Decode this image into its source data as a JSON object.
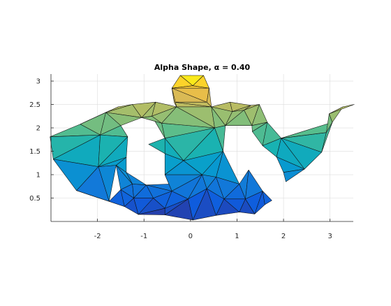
{
  "chart_data": {
    "type": "surface-3d",
    "title": "Alpha Shape, α = 0.40",
    "xlabel": "",
    "ylabel": "",
    "xlim": [
      -3.0,
      3.5
    ],
    "ylim": [
      0.0,
      3.15
    ],
    "x_ticks": [
      -2,
      -1,
      0,
      1,
      2,
      3
    ],
    "x_tick_labels": [
      "-2",
      "-1",
      "0",
      "1",
      "2",
      "3"
    ],
    "y_ticks": [
      0.5,
      1,
      1.5,
      2,
      2.5,
      3
    ],
    "y_tick_labels": [
      "0.5",
      "1",
      "1.5",
      "2",
      "2.5",
      "3"
    ],
    "grid": true,
    "colormap": "parula",
    "color_by": "height",
    "vertices": [
      [
        -2.45,
        0.66
      ],
      [
        -3.02,
        1.81
      ],
      [
        -1.55,
        2.45
      ],
      [
        -2.37,
        2.08
      ],
      [
        -2.95,
        1.33
      ],
      [
        -1.98,
        1.17
      ],
      [
        -1.94,
        1.85
      ],
      [
        -1.82,
        2.33
      ],
      [
        -1.5,
        2.05
      ],
      [
        -1.35,
        1.81
      ],
      [
        -1.75,
        0.43
      ],
      [
        -1.5,
        0.68
      ],
      [
        -1.38,
        1.37
      ],
      [
        -1.42,
        0.32
      ],
      [
        -1.12,
        0.15
      ],
      [
        -0.55,
        0.14
      ],
      [
        0.05,
        0.03
      ],
      [
        0.55,
        0.13
      ],
      [
        1.05,
        0.2
      ],
      [
        1.38,
        0.16
      ],
      [
        1.6,
        0.36
      ],
      [
        -1.25,
        0.8
      ],
      [
        -1.22,
        0.5
      ],
      [
        -0.95,
        0.78
      ],
      [
        -0.8,
        0.5
      ],
      [
        -0.45,
        0.8
      ],
      [
        -0.55,
        0.28
      ],
      [
        -0.05,
        0.48
      ],
      [
        0.35,
        0.7
      ],
      [
        0.72,
        0.48
      ],
      [
        1.05,
        0.8
      ],
      [
        1.18,
        0.48
      ],
      [
        1.55,
        0.65
      ],
      [
        -1.05,
        2.22
      ],
      [
        -0.83,
        2.25
      ],
      [
        -0.62,
        2.1
      ],
      [
        -0.55,
        1.78
      ],
      [
        -0.3,
        2.45
      ],
      [
        -0.15,
        1.3
      ],
      [
        -0.55,
        1.45
      ],
      [
        -0.55,
        1.0
      ],
      [
        0.25,
        1.0
      ],
      [
        0.7,
        1.5
      ],
      [
        0.52,
        2.0
      ],
      [
        0.45,
        2.45
      ],
      [
        0.75,
        2.05
      ],
      [
        0.9,
        2.35
      ],
      [
        1.15,
        2.38
      ],
      [
        1.32,
        2.05
      ],
      [
        1.48,
        2.5
      ],
      [
        1.33,
        1.92
      ],
      [
        1.55,
        1.62
      ],
      [
        1.65,
        2.12
      ],
      [
        1.95,
        1.78
      ],
      [
        1.85,
        1.38
      ],
      [
        2.0,
        1.05
      ],
      [
        2.05,
        0.85
      ],
      [
        2.45,
        1.12
      ],
      [
        2.82,
        1.48
      ],
      [
        3.05,
        2.12
      ],
      [
        2.98,
        2.3
      ],
      [
        3.28,
        2.45
      ],
      [
        3.52,
        2.5
      ],
      [
        2.92,
        1.9
      ],
      [
        -0.35,
        2.55
      ],
      [
        0.35,
        2.55
      ],
      [
        -0.4,
        2.85
      ],
      [
        0.4,
        2.85
      ],
      [
        -0.22,
        3.12
      ],
      [
        0.28,
        3.12
      ],
      [
        0.05,
        2.9
      ],
      [
        -1.25,
        2.5
      ],
      [
        1.3,
        2.48
      ],
      [
        -0.75,
        2.55
      ],
      [
        0.85,
        2.55
      ],
      [
        -0.9,
        1.65
      ],
      [
        -0.4,
        0.65
      ],
      [
        0.55,
        0.95
      ],
      [
        -1.38,
        1.05
      ],
      [
        1.75,
        0.45
      ],
      [
        1.25,
        1.1
      ],
      [
        -1.6,
        1.2
      ]
    ],
    "triangles": [
      [
        1,
        3,
        6
      ],
      [
        1,
        6,
        4
      ],
      [
        4,
        6,
        5
      ],
      [
        4,
        5,
        0
      ],
      [
        3,
        7,
        6
      ],
      [
        3,
        2,
        7
      ],
      [
        7,
        8,
        6
      ],
      [
        6,
        8,
        9
      ],
      [
        6,
        9,
        5
      ],
      [
        5,
        9,
        12
      ],
      [
        5,
        12,
        81
      ],
      [
        5,
        81,
        10
      ],
      [
        5,
        10,
        0
      ],
      [
        0,
        10,
        13
      ],
      [
        10,
        11,
        13
      ],
      [
        11,
        81,
        21
      ],
      [
        11,
        21,
        22
      ],
      [
        11,
        22,
        13
      ],
      [
        13,
        22,
        14
      ],
      [
        81,
        12,
        78
      ],
      [
        81,
        78,
        21
      ],
      [
        21,
        78,
        23
      ],
      [
        21,
        23,
        22
      ],
      [
        22,
        23,
        24
      ],
      [
        22,
        24,
        14
      ],
      [
        14,
        24,
        26
      ],
      [
        14,
        26,
        15
      ],
      [
        24,
        76,
        26
      ],
      [
        23,
        25,
        76
      ],
      [
        23,
        76,
        24
      ],
      [
        25,
        40,
        76
      ],
      [
        26,
        76,
        27
      ],
      [
        26,
        27,
        15
      ],
      [
        15,
        27,
        16
      ],
      [
        76,
        40,
        41
      ],
      [
        76,
        41,
        27
      ],
      [
        27,
        41,
        28
      ],
      [
        27,
        28,
        16
      ],
      [
        16,
        28,
        17
      ],
      [
        28,
        77,
        29
      ],
      [
        28,
        41,
        77
      ],
      [
        28,
        29,
        17
      ],
      [
        17,
        29,
        18
      ],
      [
        29,
        30,
        31
      ],
      [
        29,
        31,
        18
      ],
      [
        18,
        31,
        19
      ],
      [
        31,
        32,
        19
      ],
      [
        19,
        32,
        20
      ],
      [
        32,
        79,
        20
      ],
      [
        30,
        80,
        31
      ],
      [
        31,
        80,
        32
      ],
      [
        29,
        77,
        30
      ],
      [
        77,
        42,
        30
      ],
      [
        77,
        41,
        42
      ],
      [
        40,
        39,
        38
      ],
      [
        40,
        38,
        41
      ],
      [
        41,
        38,
        42
      ],
      [
        39,
        36,
        38
      ],
      [
        36,
        43,
        38
      ],
      [
        38,
        43,
        42
      ],
      [
        39,
        75,
        36
      ],
      [
        36,
        35,
        43
      ],
      [
        36,
        34,
        35
      ],
      [
        34,
        33,
        35
      ],
      [
        33,
        73,
        34
      ],
      [
        73,
        37,
        34
      ],
      [
        34,
        37,
        35
      ],
      [
        35,
        37,
        43
      ],
      [
        37,
        44,
        43
      ],
      [
        43,
        44,
        45
      ],
      [
        43,
        45,
        42
      ],
      [
        44,
        46,
        45
      ],
      [
        44,
        74,
        46
      ],
      [
        46,
        47,
        45
      ],
      [
        74,
        72,
        46
      ],
      [
        46,
        72,
        47
      ],
      [
        47,
        72,
        49
      ],
      [
        47,
        49,
        48
      ],
      [
        47,
        48,
        45
      ],
      [
        48,
        49,
        52
      ],
      [
        48,
        52,
        50
      ],
      [
        50,
        52,
        51
      ],
      [
        52,
        53,
        51
      ],
      [
        51,
        53,
        54
      ],
      [
        54,
        53,
        57
      ],
      [
        54,
        57,
        55
      ],
      [
        55,
        57,
        56
      ],
      [
        57,
        53,
        58
      ],
      [
        53,
        63,
        58
      ],
      [
        53,
        59,
        63
      ],
      [
        59,
        60,
        63
      ],
      [
        59,
        61,
        60
      ],
      [
        61,
        62,
        60
      ],
      [
        58,
        63,
        59
      ],
      [
        2,
        71,
        7
      ],
      [
        71,
        33,
        7
      ],
      [
        7,
        33,
        8
      ],
      [
        71,
        73,
        33
      ],
      [
        37,
        64,
        44
      ],
      [
        64,
        65,
        44
      ],
      [
        64,
        66,
        65
      ],
      [
        66,
        67,
        65
      ],
      [
        66,
        68,
        70
      ],
      [
        66,
        70,
        67
      ],
      [
        68,
        69,
        70
      ],
      [
        69,
        67,
        70
      ],
      [
        64,
        37,
        66
      ],
      [
        65,
        67,
        44
      ]
    ],
    "annotations": []
  }
}
